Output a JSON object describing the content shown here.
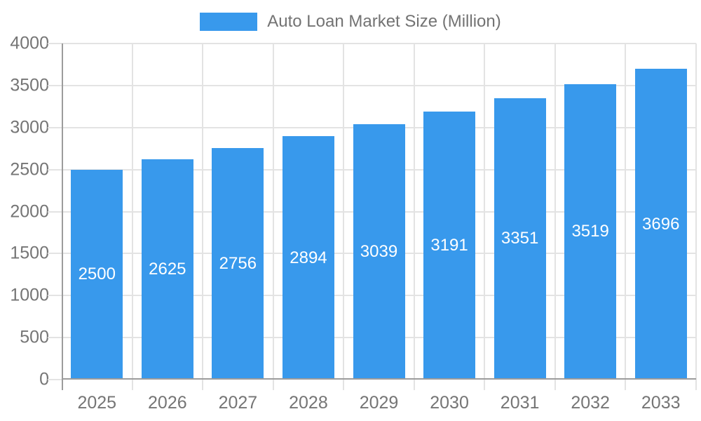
{
  "legend": {
    "label": "Auto Loan Market Size (Million)"
  },
  "chart_data": {
    "type": "bar",
    "title": "Auto Loan Market Size (Million)",
    "series_name": "Auto Loan Market Size (Million)",
    "categories": [
      "2025",
      "2026",
      "2027",
      "2028",
      "2029",
      "2030",
      "2031",
      "2032",
      "2033"
    ],
    "values": [
      2500,
      2625,
      2756,
      2894,
      3039,
      3191,
      3351,
      3519,
      3696
    ],
    "bar_value_labels": [
      "2500",
      "2625",
      "2756",
      "2894",
      "3039",
      "3191",
      "3351",
      "3519",
      "3696"
    ],
    "xlabel": "",
    "ylabel": "",
    "ylim": [
      0,
      4000
    ],
    "yticks": [
      0,
      500,
      1000,
      1500,
      2000,
      2500,
      3000,
      3500,
      4000
    ],
    "grid": true,
    "legend_position": "top-center",
    "colors": {
      "bar": "#3899ec",
      "gridline": "#e3e3e3",
      "axis_line": "#9c9c9c",
      "tick_label": "#757575",
      "legend_text": "#737373",
      "bar_label": "#ffffff",
      "background": "#ffffff"
    }
  }
}
